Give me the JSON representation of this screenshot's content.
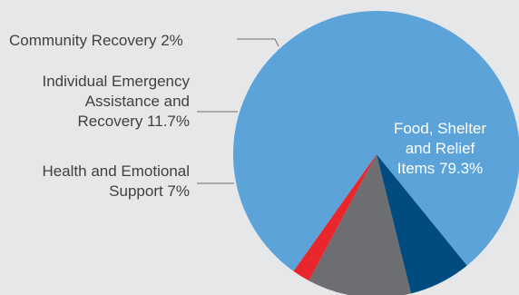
{
  "chart_data": {
    "type": "pie",
    "title": "",
    "slices": [
      {
        "label_lines": [
          "Food, Shelter",
          "and Relief",
          "Items 79.3%"
        ],
        "value": 79.3,
        "color": "#5ba3d9"
      },
      {
        "label_lines": [
          "Health and Emotional",
          "Support 7%"
        ],
        "value": 7,
        "color": "#004b7f"
      },
      {
        "label_lines": [
          "Individual Emergency",
          "Assistance and",
          "Recovery 11.7%"
        ],
        "value": 11.7,
        "color": "#6d6e71"
      },
      {
        "label_lines": [
          "Community Recovery 2%"
        ],
        "value": 2,
        "color": "#e8262b"
      }
    ],
    "colors": {
      "background": "#e6e7e8",
      "leader_line": "#6d6e71",
      "label_text": "#414042",
      "inside_label_text": "#ffffff"
    }
  }
}
